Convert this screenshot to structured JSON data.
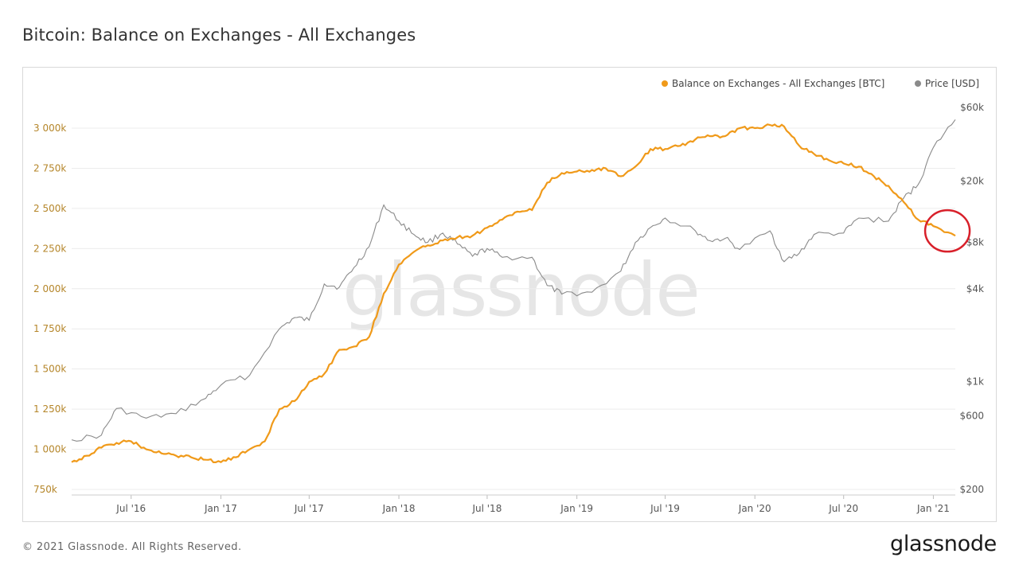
{
  "header": {
    "title": "Bitcoin: Balance on Exchanges - All Exchanges"
  },
  "footer": {
    "copyright": "© 2021 Glassnode. All Rights Reserved.",
    "logo": "glassnode"
  },
  "watermark": "glassnode",
  "colors": {
    "balance": "#f09a1a",
    "price": "#8a8a8a",
    "highlight": "#d8202a",
    "left_axis_text": "#b5862a"
  },
  "chart_data": {
    "type": "line",
    "title": "Bitcoin: Balance on Exchanges - All Exchanges",
    "legend": {
      "placement": "top-right",
      "entries": [
        "Balance on Exchanges - All Exchanges [BTC]",
        "Price [USD]"
      ]
    },
    "y_left": {
      "ticks": [
        "750k",
        "1 000k",
        "1 250k",
        "1 500k",
        "1 750k",
        "2 000k",
        "2 250k",
        "2 500k",
        "2 750k",
        "3 000k"
      ],
      "range": [
        750000,
        3000000
      ]
    },
    "y_right": {
      "scale": "log",
      "ticks": [
        "$200",
        "$600",
        "$1k",
        "$4k",
        "$8k",
        "$20k",
        "$60k"
      ]
    },
    "x_ticks": [
      "Jul '16",
      "Jan '17",
      "Jul '17",
      "Jan '18",
      "Jul '18",
      "Jan '19",
      "Jul '19",
      "Jan '20",
      "Jul '20",
      "Jan '21"
    ],
    "x_range": [
      "2016-03-01",
      "2021-02-15"
    ],
    "grid": "horizontal",
    "annotation": {
      "type": "circle",
      "note": "latest balance highlighted",
      "date": "2021-01-20"
    },
    "series": [
      {
        "name": "Balance on Exchanges - All Exchanges [BTC]",
        "axis": "left",
        "points": [
          [
            "2016-03-01",
            920000
          ],
          [
            "2016-04-01",
            960000
          ],
          [
            "2016-05-01",
            1010000
          ],
          [
            "2016-06-01",
            1040000
          ],
          [
            "2016-07-01",
            1050000
          ],
          [
            "2016-08-01",
            1000000
          ],
          [
            "2016-09-01",
            975000
          ],
          [
            "2016-10-01",
            960000
          ],
          [
            "2016-11-01",
            950000
          ],
          [
            "2016-12-01",
            935000
          ],
          [
            "2017-01-01",
            920000
          ],
          [
            "2017-02-01",
            950000
          ],
          [
            "2017-03-01",
            1000000
          ],
          [
            "2017-04-01",
            1050000
          ],
          [
            "2017-05-01",
            1250000
          ],
          [
            "2017-06-01",
            1300000
          ],
          [
            "2017-07-01",
            1420000
          ],
          [
            "2017-08-01",
            1470000
          ],
          [
            "2017-09-01",
            1620000
          ],
          [
            "2017-10-01",
            1640000
          ],
          [
            "2017-11-01",
            1700000
          ],
          [
            "2017-12-01",
            1970000
          ],
          [
            "2018-01-01",
            2150000
          ],
          [
            "2018-02-01",
            2230000
          ],
          [
            "2018-03-01",
            2270000
          ],
          [
            "2018-04-01",
            2300000
          ],
          [
            "2018-05-01",
            2320000
          ],
          [
            "2018-06-01",
            2330000
          ],
          [
            "2018-07-01",
            2380000
          ],
          [
            "2018-08-01",
            2430000
          ],
          [
            "2018-09-01",
            2480000
          ],
          [
            "2018-10-01",
            2490000
          ],
          [
            "2018-11-01",
            2660000
          ],
          [
            "2018-12-01",
            2720000
          ],
          [
            "2019-01-01",
            2730000
          ],
          [
            "2019-02-01",
            2740000
          ],
          [
            "2019-03-01",
            2750000
          ],
          [
            "2019-04-01",
            2700000
          ],
          [
            "2019-05-01",
            2760000
          ],
          [
            "2019-06-01",
            2870000
          ],
          [
            "2019-07-01",
            2870000
          ],
          [
            "2019-08-01",
            2890000
          ],
          [
            "2019-09-01",
            2930000
          ],
          [
            "2019-10-01",
            2950000
          ],
          [
            "2019-11-01",
            2950000
          ],
          [
            "2019-12-01",
            3000000
          ],
          [
            "2020-01-01",
            3000000
          ],
          [
            "2020-02-01",
            3020000
          ],
          [
            "2020-03-01",
            3010000
          ],
          [
            "2020-04-01",
            2890000
          ],
          [
            "2020-05-01",
            2840000
          ],
          [
            "2020-06-01",
            2800000
          ],
          [
            "2020-07-01",
            2780000
          ],
          [
            "2020-08-01",
            2760000
          ],
          [
            "2020-09-01",
            2700000
          ],
          [
            "2020-10-01",
            2640000
          ],
          [
            "2020-11-01",
            2540000
          ],
          [
            "2020-12-01",
            2430000
          ],
          [
            "2021-01-01",
            2390000
          ],
          [
            "2021-02-15",
            2330000
          ]
        ]
      },
      {
        "name": "Price [USD]",
        "axis": "right",
        "points": [
          [
            "2016-03-01",
            420
          ],
          [
            "2016-05-01",
            450
          ],
          [
            "2016-06-01",
            670
          ],
          [
            "2016-08-01",
            580
          ],
          [
            "2016-10-01",
            620
          ],
          [
            "2016-12-01",
            780
          ],
          [
            "2017-01-01",
            950
          ],
          [
            "2017-03-01",
            1100
          ],
          [
            "2017-05-01",
            2200
          ],
          [
            "2017-06-01",
            2600
          ],
          [
            "2017-07-01",
            2500
          ],
          [
            "2017-08-01",
            4300
          ],
          [
            "2017-09-01",
            4100
          ],
          [
            "2017-10-01",
            5500
          ],
          [
            "2017-11-01",
            7500
          ],
          [
            "2017-12-01",
            14000
          ],
          [
            "2018-01-01",
            11000
          ],
          [
            "2018-02-01",
            9000
          ],
          [
            "2018-03-01",
            8000
          ],
          [
            "2018-04-01",
            9200
          ],
          [
            "2018-05-01",
            7800
          ],
          [
            "2018-06-01",
            6500
          ],
          [
            "2018-07-01",
            7300
          ],
          [
            "2018-08-01",
            6400
          ],
          [
            "2018-10-01",
            6400
          ],
          [
            "2018-11-01",
            4200
          ],
          [
            "2018-12-01",
            3700
          ],
          [
            "2019-02-01",
            3800
          ],
          [
            "2019-04-01",
            5200
          ],
          [
            "2019-05-01",
            8000
          ],
          [
            "2019-06-01",
            10000
          ],
          [
            "2019-07-01",
            11500
          ],
          [
            "2019-09-01",
            9500
          ],
          [
            "2019-10-01",
            8200
          ],
          [
            "2019-11-01",
            8500
          ],
          [
            "2019-12-01",
            7200
          ],
          [
            "2020-02-01",
            9500
          ],
          [
            "2020-03-01",
            6000
          ],
          [
            "2020-04-01",
            6800
          ],
          [
            "2020-05-01",
            9000
          ],
          [
            "2020-07-01",
            9200
          ],
          [
            "2020-08-01",
            11500
          ],
          [
            "2020-10-01",
            11000
          ],
          [
            "2020-11-01",
            15500
          ],
          [
            "2020-12-01",
            19000
          ],
          [
            "2021-01-01",
            33000
          ],
          [
            "2021-02-15",
            50000
          ]
        ]
      }
    ]
  }
}
